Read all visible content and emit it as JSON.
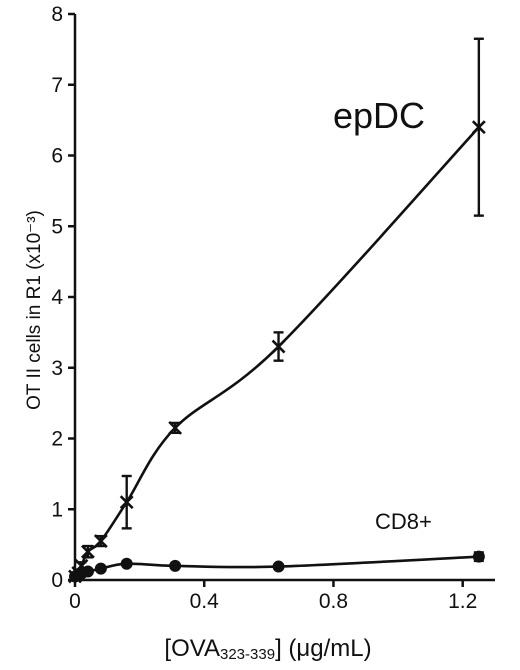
{
  "chart_data": {
    "type": "line",
    "title": "",
    "xlabel": "",
    "ylabel": "OT II cells in R1 (x10⁻³)",
    "xlabel_parts": {
      "open": "[OVA",
      "sub": "323-339",
      "close": "] (μg/mL)"
    },
    "xlim": [
      0,
      1.3
    ],
    "ylim": [
      0,
      8
    ],
    "xticks": [
      "0",
      "0.4",
      "0.8",
      "1.2"
    ],
    "xtick_values": [
      0,
      0.4,
      0.8,
      1.2
    ],
    "yticks": [
      "0",
      "1",
      "2",
      "3",
      "4",
      "5",
      "6",
      "7",
      "8"
    ],
    "ytick_values": [
      0,
      1,
      2,
      3,
      4,
      5,
      6,
      7,
      8
    ],
    "grid": false,
    "series": [
      {
        "name": "epDC",
        "marker": "x",
        "x": [
          0,
          0.01,
          0.02,
          0.04,
          0.08,
          0.16,
          0.31,
          0.63,
          1.25
        ],
        "y": [
          0.05,
          0.1,
          0.2,
          0.4,
          0.55,
          1.1,
          2.15,
          3.3,
          6.4
        ],
        "err": [
          0.03,
          0.03,
          0.05,
          0.08,
          0.07,
          0.37,
          0.07,
          0.2,
          1.25
        ]
      },
      {
        "name": "CD8+",
        "marker": "circle",
        "x": [
          0,
          0.01,
          0.02,
          0.04,
          0.08,
          0.16,
          0.31,
          0.63,
          1.25
        ],
        "y": [
          0.05,
          0.07,
          0.09,
          0.12,
          0.16,
          0.23,
          0.2,
          0.19,
          0.33
        ],
        "err": [
          0,
          0,
          0,
          0,
          0,
          0,
          0,
          0,
          0.06
        ]
      }
    ]
  }
}
